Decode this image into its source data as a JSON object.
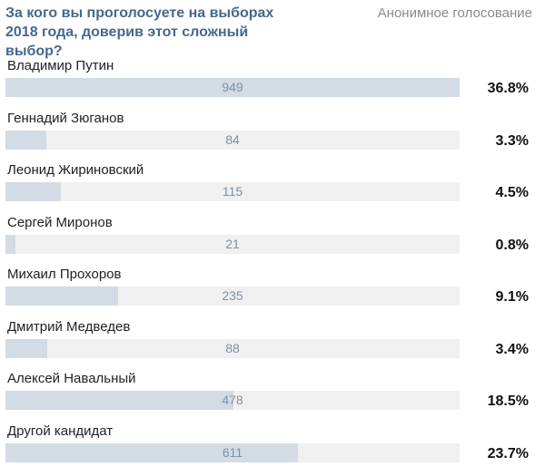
{
  "poll": {
    "question": "За кого вы проголосуете на выборах 2018 года, доверив этот сложный выбор?",
    "type_label": "Анонимное голосование",
    "bar_color": "#d3dbe4",
    "track_color": "#f0f0f0",
    "options": [
      {
        "label": "Владимир Путин",
        "count": "949",
        "percent": "36.8%",
        "fill": 1.0
      },
      {
        "label": "Геннадий Зюганов",
        "count": "84",
        "percent": "3.3%",
        "fill": 0.0897
      },
      {
        "label": "Леонид Жириновский",
        "count": "115",
        "percent": "4.5%",
        "fill": 0.1223
      },
      {
        "label": "Сергей Миронов",
        "count": "21",
        "percent": "0.8%",
        "fill": 0.0217
      },
      {
        "label": "Михаил Прохоров",
        "count": "235",
        "percent": "9.1%",
        "fill": 0.2473
      },
      {
        "label": "Дмитрий Медведев",
        "count": "88",
        "percent": "3.4%",
        "fill": 0.0924
      },
      {
        "label": "Алексей Навальный",
        "count": "478",
        "percent": "18.5%",
        "fill": 0.5027
      },
      {
        "label": "Другой кандидат",
        "count": "611",
        "percent": "23.7%",
        "fill": 0.644
      }
    ]
  }
}
